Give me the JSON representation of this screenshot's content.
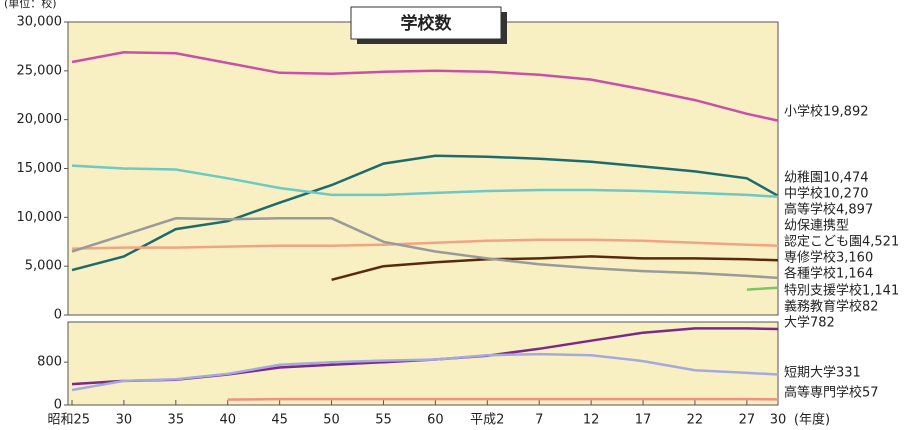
{
  "chart_data": [
    {
      "type": "line",
      "title": "学校数",
      "unit_label": "(単位：校)",
      "x": [
        1950,
        1955,
        1960,
        1965,
        1970,
        1975,
        1980,
        1985,
        1990,
        1995,
        2000,
        2005,
        2010,
        2015,
        2018
      ],
      "xlim": [
        1950,
        2018
      ],
      "ylim": [
        0,
        30000
      ],
      "yticks": [
        0,
        {
          "value": 5000,
          "label": "5,000"
        },
        {
          "value": 10000,
          "label": "10,000"
        },
        {
          "value": 15000,
          "label": "15,000"
        },
        {
          "value": 20000,
          "label": "20,000"
        },
        {
          "value": 25000,
          "label": "25,000"
        },
        {
          "value": 30000,
          "label": "30,000"
        }
      ],
      "series": [
        {
          "color": "#c94fa8",
          "values": [
            25900,
            26900,
            26800,
            25800,
            24800,
            24700,
            24900,
            25000,
            24900,
            24600,
            24100,
            23100,
            22000,
            20600,
            19900
          ]
        },
        {
          "color": "#1d6b6b",
          "values": [
            4600,
            6000,
            8800,
            9600,
            11500,
            13300,
            15500,
            16300,
            16200,
            16000,
            15700,
            15200,
            14700,
            14000,
            12200
          ]
        },
        {
          "color": "#6cc9c4",
          "values": [
            15300,
            15000,
            14900,
            14000,
            13000,
            12300,
            12300,
            12500,
            12700,
            12800,
            12800,
            12700,
            12500,
            12300,
            12100
          ]
        },
        {
          "color": "#f2a482",
          "values": [
            6800,
            6900,
            6900,
            7000,
            7100,
            7100,
            7200,
            7400,
            7600,
            7700,
            7700,
            7600,
            7400,
            7200,
            7100
          ]
        },
        {
          "color": "#5a2a10",
          "values": [
            null,
            null,
            null,
            null,
            null,
            3600,
            5000,
            5400,
            5700,
            5800,
            6000,
            5800,
            5800,
            5700,
            5600
          ]
        },
        {
          "color": "#9a9a9a",
          "values": [
            6500,
            8200,
            9900,
            9800,
            9900,
            9900,
            7500,
            6500,
            5800,
            5200,
            4800,
            4500,
            4300,
            4000,
            3800
          ]
        },
        {
          "color": "#7cc46a",
          "values": [
            null,
            null,
            null,
            null,
            null,
            null,
            null,
            null,
            null,
            null,
            null,
            null,
            null,
            2600,
            2800
          ]
        }
      ],
      "side_labels": [
        "小学校19,892",
        "幼稚園10,474",
        "中学校10,270",
        "高等学校4,897",
        "幼保連携型",
        "認定こども園4,521",
        "専修学校3,160",
        "各種学校1,164",
        "特別支援学校1,141",
        "義務教育学校82"
      ]
    },
    {
      "type": "line",
      "x": [
        1950,
        1955,
        1960,
        1965,
        1970,
        1975,
        1980,
        1985,
        1990,
        1995,
        2000,
        2005,
        2010,
        2015,
        2018
      ],
      "xlim": [
        1950,
        2018
      ],
      "xticks": [
        {
          "value": 1950,
          "label": "昭和25"
        },
        {
          "value": 1955,
          "label": "30"
        },
        {
          "value": 1960,
          "label": "35"
        },
        {
          "value": 1965,
          "label": "40"
        },
        {
          "value": 1970,
          "label": "45"
        },
        {
          "value": 1975,
          "label": "50"
        },
        {
          "value": 1980,
          "label": "55"
        },
        {
          "value": 1985,
          "label": "60"
        },
        {
          "value": 1990,
          "label": "平成2"
        },
        {
          "value": 1995,
          "label": "7"
        },
        {
          "value": 2000,
          "label": "12"
        },
        {
          "value": 2005,
          "label": "17"
        },
        {
          "value": 2010,
          "label": "22"
        },
        {
          "value": 2015,
          "label": "27"
        },
        {
          "value": 2018,
          "label": "30"
        }
      ],
      "x_label": "(年度)",
      "ylim": [
        0,
        1550
      ],
      "yticks": [
        0,
        800
      ],
      "series": [
        {
          "color": "#7a2a8a",
          "values": [
            390,
            450,
            470,
            570,
            700,
            750,
            800,
            850,
            920,
            1050,
            1200,
            1350,
            1430,
            1430,
            1420
          ]
        },
        {
          "color": "#a8a8e0",
          "values": [
            280,
            450,
            480,
            580,
            750,
            800,
            830,
            850,
            930,
            950,
            930,
            820,
            650,
            600,
            570
          ]
        },
        {
          "color": "#f09080",
          "values": [
            null,
            null,
            null,
            100,
            110,
            110,
            110,
            110,
            110,
            110,
            110,
            110,
            110,
            110,
            105
          ]
        }
      ],
      "side_labels": [
        "大学782",
        "短期大学331",
        "高等専門学校57"
      ]
    }
  ]
}
